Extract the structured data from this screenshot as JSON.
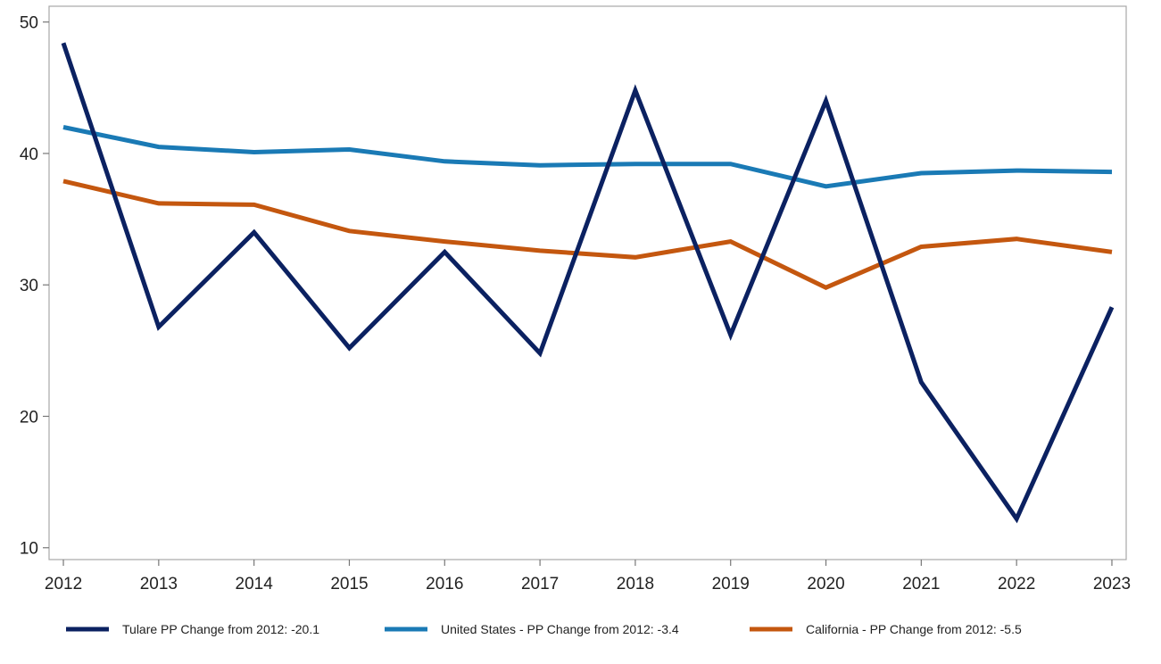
{
  "chart_data": {
    "type": "line",
    "title": "",
    "xlabel": "",
    "ylabel": "",
    "x": [
      2012,
      2013,
      2014,
      2015,
      2016,
      2017,
      2018,
      2019,
      2020,
      2021,
      2022,
      2023
    ],
    "x_tick_labels": [
      "2012",
      "2013",
      "2014",
      "2015",
      "2016",
      "2017",
      "2018",
      "2019",
      "2020",
      "2021",
      "2022",
      "2023"
    ],
    "y_ticks": [
      10,
      20,
      30,
      40,
      50
    ],
    "y_tick_labels": [
      "10",
      "20",
      "30",
      "40",
      "50"
    ],
    "ylim": [
      9.1,
      51.2
    ],
    "xlim": [
      2011.85,
      2023.15
    ],
    "grid": false,
    "legend_position": "bottom",
    "series": [
      {
        "name": "Tulare PP Change from 2012: -20.1",
        "color": "#0b2161",
        "values": [
          48.4,
          26.8,
          34.0,
          25.2,
          32.5,
          24.8,
          44.8,
          26.2,
          44.0,
          22.6,
          12.2,
          28.3
        ]
      },
      {
        "name": "United States - PP Change from 2012: -3.4",
        "color": "#1a7ab5",
        "values": [
          42.0,
          40.5,
          40.1,
          40.3,
          39.4,
          39.1,
          39.2,
          39.2,
          37.5,
          38.5,
          38.7,
          38.6
        ]
      },
      {
        "name": "California - PP Change from 2012: -5.5",
        "color": "#c4570f",
        "values": [
          37.9,
          36.2,
          36.1,
          34.1,
          33.3,
          32.6,
          32.1,
          33.3,
          29.8,
          32.9,
          33.5,
          32.5
        ]
      }
    ]
  }
}
